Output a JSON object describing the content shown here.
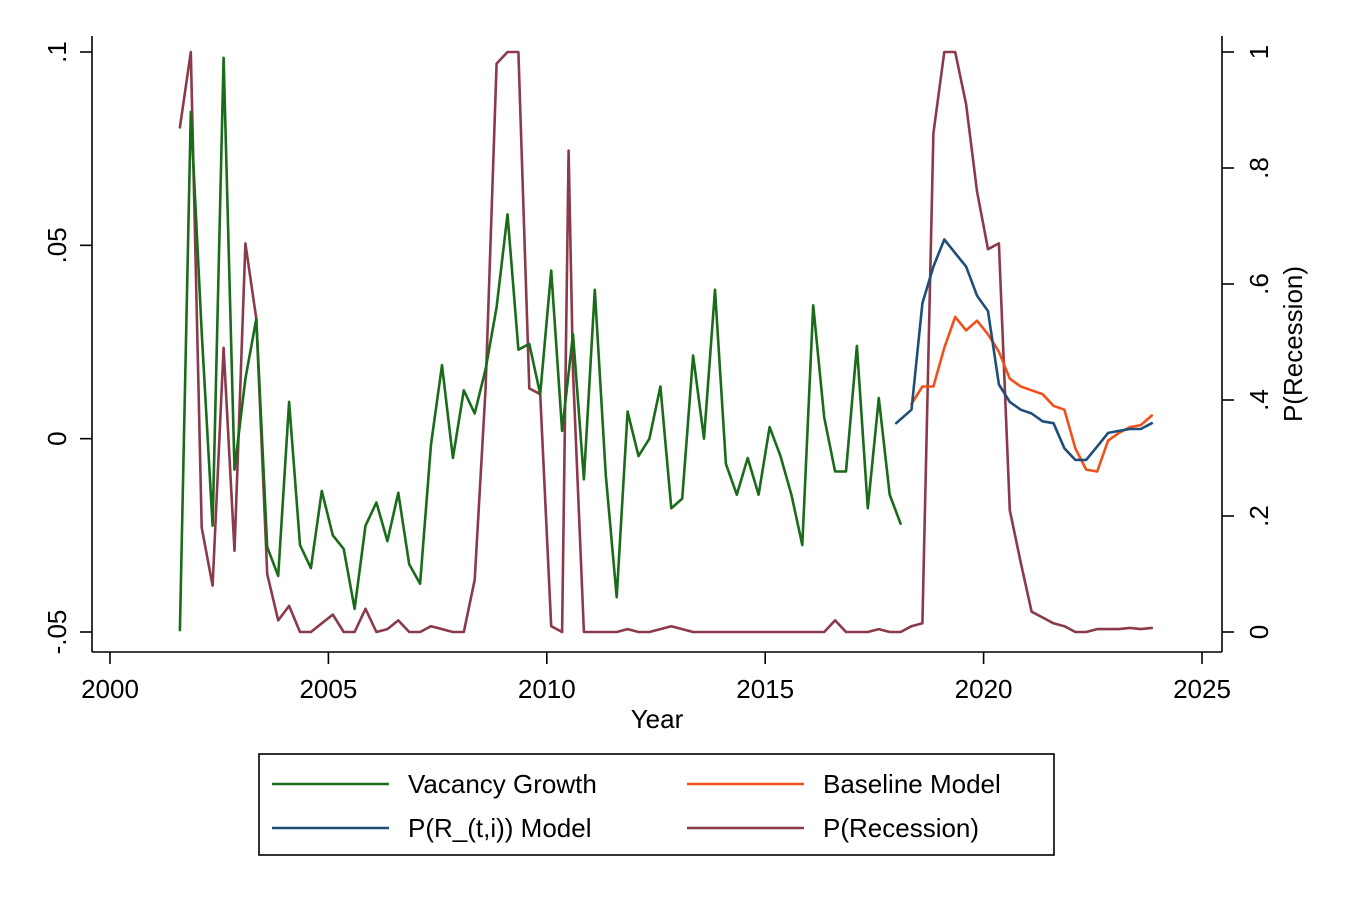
{
  "chart_data": {
    "type": "line",
    "title": "",
    "xlabel": "Year",
    "ylabel": "",
    "y2label": "P(Recession)",
    "xlim": [
      2000,
      2025
    ],
    "ylim": [
      -0.05,
      0.1
    ],
    "y2lim": [
      0,
      1
    ],
    "x_ticks": [
      {
        "value": 2000,
        "label": "2000"
      },
      {
        "value": 2005,
        "label": "2005"
      },
      {
        "value": 2010,
        "label": "2010"
      },
      {
        "value": 2015,
        "label": "2015"
      },
      {
        "value": 2020,
        "label": "2020"
      },
      {
        "value": 2025,
        "label": "2025"
      }
    ],
    "y_ticks": [
      {
        "value": -0.05,
        "label": "-.05"
      },
      {
        "value": 0,
        "label": "0"
      },
      {
        "value": 0.05,
        "label": ".05"
      },
      {
        "value": 0.1,
        "label": ".1"
      }
    ],
    "y2_ticks": [
      {
        "value": 0,
        "label": "0"
      },
      {
        "value": 0.2,
        "label": ".2"
      },
      {
        "value": 0.4,
        "label": ".4"
      },
      {
        "value": 0.6,
        "label": ".6"
      },
      {
        "value": 0.8,
        "label": ".8"
      },
      {
        "value": 1,
        "label": "1"
      }
    ],
    "grid": false,
    "legend_position": "bottom",
    "series": [
      {
        "name": "Vacancy Growth",
        "axis": "left",
        "color": "#1a6b1a",
        "x": [
          2001.6,
          2001.85,
          2002.1,
          2002.35,
          2002.6,
          2002.85,
          2003.1,
          2003.35,
          2003.6,
          2003.85,
          2004.1,
          2004.35,
          2004.6,
          2004.85,
          2005.1,
          2005.35,
          2005.6,
          2005.85,
          2006.1,
          2006.35,
          2006.6,
          2006.85,
          2007.1,
          2007.35,
          2007.6,
          2007.85,
          2008.1,
          2008.35,
          2008.6,
          2008.85,
          2009.1,
          2009.35,
          2009.6,
          2009.85,
          2010.1,
          2010.35,
          2010.6,
          2010.85,
          2011.1,
          2011.35,
          2011.6,
          2011.85,
          2012.1,
          2012.35,
          2012.6,
          2012.85,
          2013.1,
          2013.35,
          2013.6,
          2013.85,
          2014.1,
          2014.35,
          2014.6,
          2014.85,
          2015.1,
          2015.35,
          2015.6,
          2015.85,
          2016.1,
          2016.35,
          2016.6,
          2016.85,
          2017.1,
          2017.35,
          2017.6,
          2017.85,
          2018.1
        ],
        "values": [
          -0.0495,
          0.0845,
          0.0275,
          -0.0225,
          0.0985,
          -0.008,
          0.0155,
          0.031,
          -0.028,
          -0.0355,
          0.0095,
          -0.0275,
          -0.0335,
          -0.0135,
          -0.025,
          -0.0285,
          -0.044,
          -0.0225,
          -0.0165,
          -0.0265,
          -0.014,
          -0.0325,
          -0.0375,
          -0.0015,
          0.019,
          -0.005,
          0.0125,
          0.0065,
          0.018,
          0.034,
          0.058,
          0.023,
          0.0245,
          0.0115,
          0.0435,
          0.002,
          0.027,
          -0.0105,
          0.0385,
          -0.0095,
          -0.041,
          0.007,
          -0.0045,
          0.0,
          0.0135,
          -0.018,
          -0.0155,
          0.0215,
          0.0,
          0.0385,
          -0.0065,
          -0.0145,
          -0.005,
          -0.0145,
          0.003,
          -0.0045,
          -0.0145,
          -0.0275,
          0.0345,
          0.0055,
          -0.0085,
          -0.0085,
          0.024,
          -0.018,
          0.0105,
          -0.0145,
          -0.022
        ]
      },
      {
        "name": "Baseline Model",
        "axis": "left",
        "color": "#f0501a",
        "x": [
          2018.35,
          2018.6,
          2018.85,
          2019.1,
          2019.35,
          2019.6,
          2019.85,
          2020.1,
          2020.35,
          2020.6,
          2020.85,
          2021.1,
          2021.35,
          2021.6,
          2021.85,
          2022.1,
          2022.35,
          2022.6,
          2022.85,
          2023.1,
          2023.35,
          2023.6,
          2023.85
        ],
        "values": [
          0.009,
          0.0135,
          0.0135,
          0.0235,
          0.0315,
          0.028,
          0.0305,
          0.027,
          0.0225,
          0.0155,
          0.0135,
          0.0125,
          0.0115,
          0.0085,
          0.0075,
          -0.0025,
          -0.008,
          -0.0085,
          -0.0005,
          0.0015,
          0.003,
          0.0035,
          0.006
        ]
      },
      {
        "name": "P(R_(t,i)) Model",
        "axis": "left",
        "color": "#1f4e79",
        "x": [
          2018.0,
          2018.35,
          2018.6,
          2018.85,
          2019.1,
          2019.35,
          2019.6,
          2019.85,
          2020.1,
          2020.35,
          2020.6,
          2020.85,
          2021.1,
          2021.35,
          2021.6,
          2021.85,
          2022.1,
          2022.35,
          2022.6,
          2022.85,
          2023.1,
          2023.35,
          2023.6,
          2023.85
        ],
        "values": [
          0.004,
          0.0075,
          0.035,
          0.0445,
          0.0515,
          0.048,
          0.0445,
          0.037,
          0.033,
          0.014,
          0.0095,
          0.0075,
          0.0065,
          0.0045,
          0.004,
          -0.0025,
          -0.0055,
          -0.0055,
          -0.002,
          0.0015,
          0.002,
          0.0025,
          0.0025,
          0.004
        ]
      },
      {
        "name": "P(Recession)",
        "axis": "right",
        "color": "#8b3a4a",
        "x": [
          2001.6,
          2001.85,
          2002.1,
          2002.35,
          2002.6,
          2002.85,
          2003.1,
          2003.35,
          2003.6,
          2003.85,
          2004.1,
          2004.35,
          2004.6,
          2004.85,
          2005.1,
          2005.35,
          2005.6,
          2005.85,
          2006.1,
          2006.35,
          2006.6,
          2006.85,
          2007.1,
          2007.35,
          2007.6,
          2007.85,
          2008.1,
          2008.35,
          2008.6,
          2008.85,
          2009.1,
          2009.35,
          2009.6,
          2009.85,
          2010.1,
          2010.35,
          2010.5,
          2010.6,
          2010.85,
          2011.1,
          2011.35,
          2011.6,
          2011.85,
          2012.1,
          2012.35,
          2012.6,
          2012.85,
          2013.1,
          2013.35,
          2013.6,
          2013.85,
          2014.1,
          2014.35,
          2014.6,
          2014.85,
          2015.1,
          2015.35,
          2015.6,
          2015.85,
          2016.1,
          2016.35,
          2016.6,
          2016.85,
          2017.1,
          2017.35,
          2017.6,
          2017.85,
          2018.1,
          2018.35,
          2018.6,
          2018.85,
          2019.1,
          2019.35,
          2019.6,
          2019.85,
          2020.1,
          2020.35,
          2020.6,
          2020.85,
          2021.1,
          2021.35,
          2021.6,
          2021.85,
          2022.1,
          2022.35,
          2022.6,
          2022.85,
          2023.1,
          2023.35,
          2023.6,
          2023.85
        ],
        "values": [
          0.87,
          1.0,
          0.18,
          0.08,
          0.49,
          0.14,
          0.67,
          0.54,
          0.1,
          0.02,
          0.045,
          0.0,
          0.0,
          0.015,
          0.03,
          0.0,
          0.0,
          0.04,
          0.0,
          0.005,
          0.02,
          0.0,
          0.0,
          0.01,
          0.005,
          0.0,
          0.0,
          0.09,
          0.42,
          0.98,
          1.0,
          1.0,
          0.42,
          0.41,
          0.01,
          0.0,
          0.83,
          0.45,
          0.0,
          0.0,
          0.0,
          0.0,
          0.005,
          0.0,
          0.0,
          0.005,
          0.01,
          0.005,
          0.0,
          0.0,
          0.0,
          0.0,
          0.0,
          0.0,
          0.0,
          0.0,
          0.0,
          0.0,
          0.0,
          0.0,
          0.0,
          0.02,
          0.0,
          0.0,
          0.0,
          0.005,
          0.0,
          0.0,
          0.01,
          0.015,
          0.86,
          1.0,
          1.0,
          0.91,
          0.76,
          0.66,
          0.67,
          0.21,
          0.12,
          0.035,
          0.025,
          0.015,
          0.01,
          0.0,
          0.0,
          0.005,
          0.005,
          0.005,
          0.007,
          0.005,
          0.007
        ]
      }
    ]
  }
}
